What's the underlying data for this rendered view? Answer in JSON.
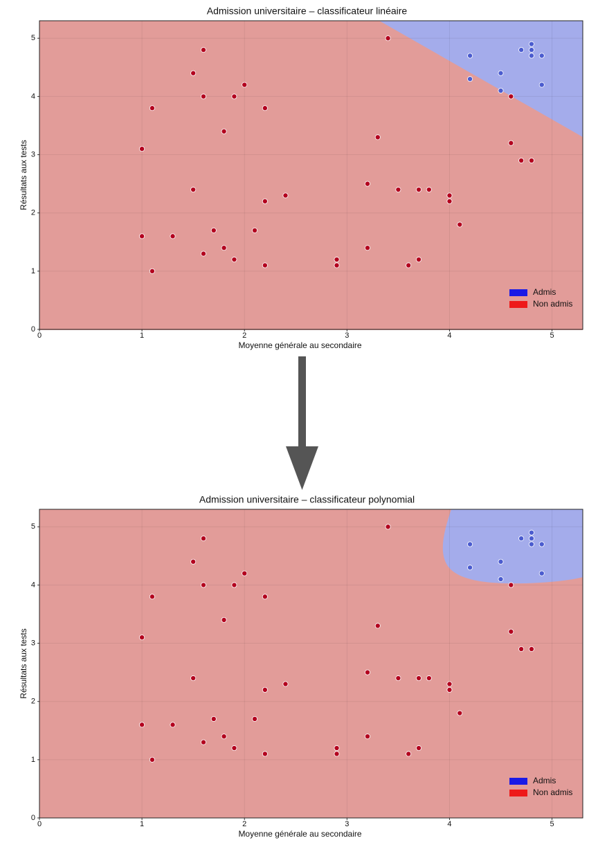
{
  "chart_data": [
    {
      "type": "scatter",
      "title": "Admission universitaire – classificateur linéaire",
      "xlabel": "Moyenne générale au secondaire",
      "ylabel": "Résultats aux tests",
      "xlim": [
        0,
        5.3
      ],
      "ylim": [
        0,
        5.3
      ],
      "xticks": [
        0,
        1,
        2,
        3,
        4,
        5
      ],
      "yticks": [
        0,
        1,
        2,
        3,
        4,
        5
      ],
      "grid": true,
      "legend": "lower right",
      "series": [
        {
          "name": "Admis",
          "color": "#1a1ae6",
          "marker_color": "#4b5ccf",
          "x": [
            4.2,
            4.2,
            4.5,
            4.5,
            4.7,
            4.8,
            4.8,
            4.8,
            4.9,
            4.9
          ],
          "values": [
            4.7,
            4.3,
            4.4,
            4.1,
            4.8,
            4.9,
            4.8,
            4.7,
            4.7,
            4.2
          ]
        },
        {
          "name": "Non admis",
          "color": "#ee1a1a",
          "marker_color": "#b3001e",
          "x": [
            1.6,
            1.5,
            1.6,
            1.9,
            2.0,
            1.1,
            2.2,
            1.8,
            1.0,
            3.4,
            3.3,
            4.6,
            4.6,
            4.7,
            4.8,
            1.5,
            2.4,
            2.2,
            3.2,
            3.5,
            3.7,
            3.8,
            4.0,
            4.0,
            4.1,
            1.0,
            1.3,
            1.7,
            2.1,
            1.6,
            1.8,
            1.9,
            2.2,
            1.1,
            2.9,
            2.9,
            3.2,
            3.6,
            3.7
          ],
          "values": [
            4.8,
            4.4,
            4.0,
            4.0,
            4.2,
            3.8,
            3.8,
            3.4,
            3.1,
            5.0,
            3.3,
            4.0,
            3.2,
            2.9,
            2.9,
            2.4,
            2.3,
            2.2,
            2.5,
            2.4,
            2.4,
            2.4,
            2.3,
            2.2,
            1.8,
            1.6,
            1.6,
            1.7,
            1.7,
            1.3,
            1.4,
            1.2,
            1.1,
            1.0,
            1.2,
            1.1,
            1.4,
            1.1,
            1.2
          ]
        }
      ]
    },
    {
      "type": "scatter",
      "title": "Admission universitaire – classificateur polynomial",
      "xlabel": "Moyenne générale au secondaire",
      "ylabel": "Résultats aux tests",
      "xlim": [
        0,
        5.3
      ],
      "ylim": [
        0,
        5.3
      ],
      "xticks": [
        0,
        1,
        2,
        3,
        4,
        5
      ],
      "yticks": [
        0,
        1,
        2,
        3,
        4,
        5
      ],
      "grid": true,
      "legend": "lower right",
      "series": [
        {
          "name": "Admis",
          "color": "#1a1ae6",
          "marker_color": "#4b5ccf",
          "x": [
            4.2,
            4.2,
            4.5,
            4.5,
            4.7,
            4.8,
            4.8,
            4.8,
            4.9,
            4.9
          ],
          "values": [
            4.7,
            4.3,
            4.4,
            4.1,
            4.8,
            4.9,
            4.8,
            4.7,
            4.7,
            4.2
          ]
        },
        {
          "name": "Non admis",
          "color": "#ee1a1a",
          "marker_color": "#b3001e",
          "x": [
            1.6,
            1.5,
            1.6,
            1.9,
            2.0,
            1.1,
            2.2,
            1.8,
            1.0,
            3.4,
            3.3,
            4.6,
            4.6,
            4.7,
            4.8,
            1.5,
            2.4,
            2.2,
            3.2,
            3.5,
            3.7,
            3.8,
            4.0,
            4.0,
            4.1,
            1.0,
            1.3,
            1.7,
            2.1,
            1.6,
            1.8,
            1.9,
            2.2,
            1.1,
            2.9,
            2.9,
            3.2,
            3.6,
            3.7
          ],
          "values": [
            4.8,
            4.4,
            4.0,
            4.0,
            4.2,
            3.8,
            3.8,
            3.4,
            3.1,
            5.0,
            3.3,
            4.0,
            3.2,
            2.9,
            2.9,
            2.4,
            2.3,
            2.2,
            2.5,
            2.4,
            2.4,
            2.4,
            2.3,
            2.2,
            1.8,
            1.6,
            1.6,
            1.7,
            1.7,
            1.3,
            1.4,
            1.2,
            1.1,
            1.0,
            1.2,
            1.1,
            1.4,
            1.1,
            1.2
          ]
        }
      ]
    }
  ]
}
